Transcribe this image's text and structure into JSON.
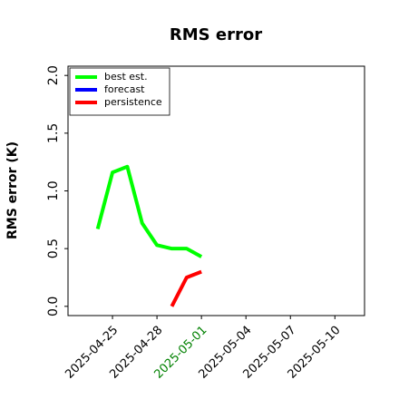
{
  "chart_data": {
    "type": "line",
    "title": "RMS error",
    "ylabel": "RMS error (K)",
    "x": [
      "2025-04-24",
      "2025-04-25",
      "2025-04-26",
      "2025-04-27",
      "2025-04-28",
      "2025-04-29",
      "2025-04-30",
      "2025-05-01"
    ],
    "series": [
      {
        "name": "best est.",
        "color": "#00ff00",
        "values": [
          0.67,
          1.16,
          1.21,
          0.72,
          0.53,
          0.5,
          0.5,
          0.43
        ]
      },
      {
        "name": "forecast",
        "color": "#0000ff",
        "values": [
          null,
          null,
          null,
          null,
          null,
          null,
          null,
          null
        ]
      },
      {
        "name": "persistence",
        "color": "#ff0000",
        "values": [
          null,
          null,
          null,
          null,
          null,
          0.0,
          0.25,
          0.3
        ]
      }
    ],
    "xlim": [
      "2025-04-22",
      "2025-05-12"
    ],
    "xticks": [
      "2025-04-25",
      "2025-04-28",
      "2025-05-01",
      "2025-05-04",
      "2025-05-07",
      "2025-05-10"
    ],
    "xtick_colors": [
      "black",
      "black",
      "green",
      "black",
      "black",
      "black"
    ],
    "ylim": [
      -0.08,
      2.08
    ],
    "yticks": [
      {
        "value": 0,
        "label": "0.0"
      },
      0.5,
      {
        "value": 1,
        "label": "1.0"
      },
      1.5,
      {
        "value": 2,
        "label": "2.0"
      }
    ],
    "legend": "upper left",
    "grid": false
  }
}
